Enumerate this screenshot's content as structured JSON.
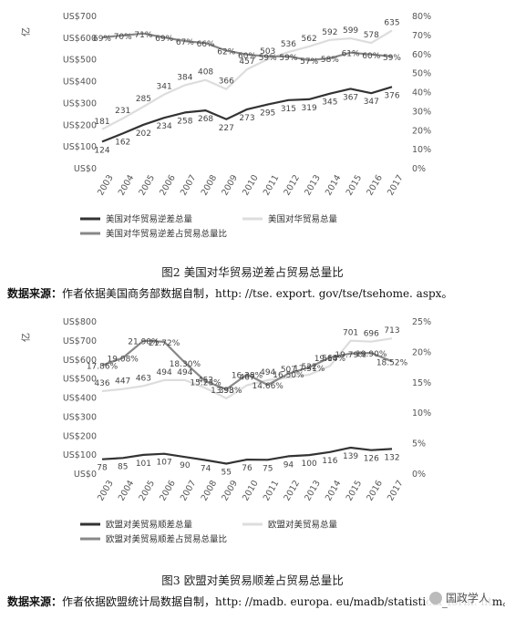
{
  "chart_data": [
    {
      "type": "line",
      "unit_label": "亿",
      "x": [
        "2003",
        "2004",
        "2005",
        "2006",
        "2007",
        "2008",
        "2009",
        "2010",
        "2011",
        "2012",
        "2013",
        "2014",
        "2015",
        "2016",
        "2017"
      ],
      "ylim": [
        0,
        700
      ],
      "y_ticks": [
        "US$0",
        "US$100",
        "US$200",
        "US$300",
        "US$400",
        "US$500",
        "US$600",
        "US$700"
      ],
      "y2lim": [
        0,
        0.8
      ],
      "y2_ticks": [
        "0%",
        "10%",
        "20%",
        "30%",
        "40%",
        "50%",
        "60%",
        "70%",
        "80%"
      ],
      "series": [
        {
          "name": "美国对华贸易逆差总量",
          "axis": "left",
          "color": "#333333",
          "width": 2.2,
          "values": [
            124,
            162,
            202,
            234,
            258,
            268,
            227,
            273,
            295,
            315,
            319,
            345,
            367,
            347,
            376
          ],
          "labels": [
            "124",
            "162",
            "202",
            "234",
            "258",
            "268",
            "227",
            "273",
            "295",
            "315",
            "319",
            "345",
            "367",
            "347",
            "376"
          ]
        },
        {
          "name": "美国对华贸易总量",
          "axis": "left",
          "color": "#dddddd",
          "width": 2.2,
          "values": [
            181,
            231,
            285,
            341,
            384,
            408,
            366,
            457,
            503,
            536,
            562,
            592,
            599,
            578,
            635
          ],
          "labels": [
            "181",
            "231",
            "285",
            "341",
            "384",
            "408",
            "366",
            "457",
            "503",
            "536",
            "562",
            "592",
            "599",
            "578",
            "635"
          ]
        },
        {
          "name": "美国对华贸易逆差占贸易总量比",
          "axis": "right",
          "color": "#888888",
          "width": 2.2,
          "values": [
            0.69,
            0.7,
            0.71,
            0.69,
            0.67,
            0.66,
            0.62,
            0.6,
            0.59,
            0.59,
            0.57,
            0.58,
            0.61,
            0.6,
            0.59
          ],
          "labels": [
            "69%",
            "70%",
            "71%",
            "69%",
            "67%",
            "66%",
            "62%",
            "60%",
            "59%",
            "59%",
            "57%",
            "58%",
            "61%",
            "60%",
            "59%"
          ]
        }
      ],
      "legend_position": "bottom",
      "caption": "图2   美国对华贸易逆差占贸易总量比",
      "source": {
        "prefix": "数据来源：",
        "text": "作者依据美国商务部数据自制，http: //tse. export. gov/tse/tsehome. aspx。"
      }
    },
    {
      "type": "line",
      "unit_label": "亿",
      "x": [
        "2003",
        "2004",
        "2005",
        "2006",
        "2007",
        "2008",
        "2009",
        "2010",
        "2011",
        "2012",
        "2013",
        "2014",
        "2015",
        "2016",
        "2017"
      ],
      "ylim": [
        0,
        800
      ],
      "y_ticks": [
        "US$0",
        "US$100",
        "US$200",
        "US$300",
        "US$400",
        "US$500",
        "US$600",
        "US$700",
        "US$800"
      ],
      "y2lim": [
        0,
        0.25
      ],
      "y2_ticks": [
        "0%",
        "5%",
        "10%",
        "15%",
        "20%",
        "25%"
      ],
      "series": [
        {
          "name": "欧盟对美贸易顺差总量",
          "axis": "left",
          "color": "#333333",
          "width": 2.2,
          "values": [
            78,
            85,
            101,
            107,
            90,
            74,
            55,
            76,
            75,
            94,
            100,
            116,
            139,
            126,
            132
          ],
          "labels": [
            "78",
            "85",
            "101",
            "107",
            "90",
            "74",
            "55",
            "76",
            "75",
            "94",
            "100",
            "116",
            "139",
            "126",
            "132"
          ]
        },
        {
          "name": "欧盟对美贸易总量",
          "axis": "left",
          "color": "#dddddd",
          "width": 2.2,
          "values": [
            436,
            447,
            463,
            494,
            494,
            452,
            398,
            467,
            494,
            507,
            522,
            568,
            701,
            696,
            713
          ],
          "labels": [
            "436",
            "447",
            "463",
            "494",
            "494",
            "452",
            "398",
            "467",
            "494",
            "507",
            "522",
            "568",
            "701",
            "696",
            "713"
          ]
        },
        {
          "name": "欧盟对美贸易顺差占贸易总量比",
          "axis": "right",
          "color": "#888888",
          "width": 2.2,
          "values": [
            0.1786,
            0.1908,
            0.219,
            0.2172,
            0.183,
            0.1523,
            0.1393,
            0.1638,
            0.1466,
            0.165,
            0.1751,
            0.1914,
            0.1979,
            0.199,
            0.1852
          ],
          "labels": [
            "17.86%",
            "19.08%",
            "21.90%",
            "21.72%",
            "18.30%",
            "15.23%",
            "13.93%",
            "16.38%",
            "14.66%",
            "16.50%",
            "17.51%",
            "19.14%",
            "19.79%",
            "19.90%",
            "18.52%"
          ]
        }
      ],
      "legend_position": "bottom",
      "caption": "图3   欧盟对美贸易顺差占贸易总量比",
      "source": {
        "prefix": "数据来源：",
        "text": "作者依据欧盟统计局数据自制，http: //madb. europa. eu/madb/statistical_form. htm。"
      }
    }
  ],
  "watermark": {
    "text": "国政学人",
    "icon": "wechat-logo-icon"
  }
}
